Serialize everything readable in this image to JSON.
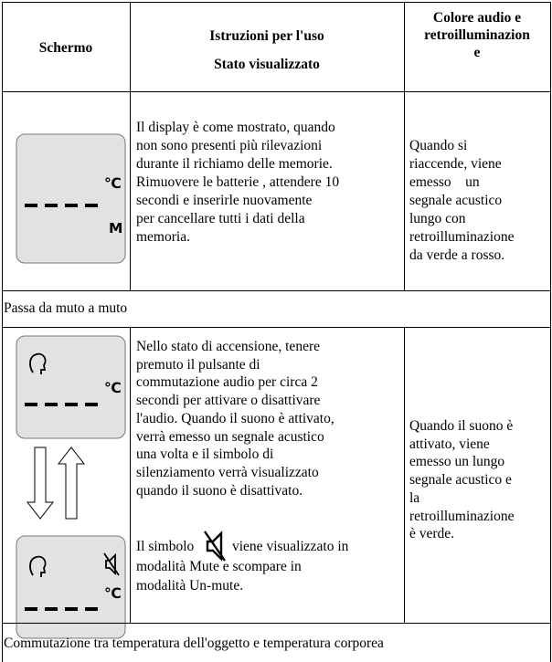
{
  "table": {
    "header": {
      "screen": "Schermo",
      "instructions": [
        "Istruzioni per l'uso",
        "Stato visualizzato"
      ],
      "sound": [
        "Colore audio e",
        "retroilluminazion",
        "e"
      ]
    },
    "rows": [
      {
        "screen": {
          "unit": "℃",
          "memory": "M"
        },
        "instructions": [
          "Il display è come mostrato, quando",
          "non sono presenti più rilevazioni",
          "durante il richiamo delle memorie.",
          "Rimuovere le batterie , attendere 10",
          "secondi e inserirle nuovamente",
          "per cancellare tutti i dati della",
          "memoria."
        ],
        "sound": [
          "Quando si",
          "riaccende, viene",
          "emesso    un",
          "segnale acustico",
          "lungo con",
          "retroilluminazione",
          "da verde a rosso."
        ]
      },
      {
        "section": "Passa da muto a muto"
      },
      {
        "screen": {
          "unit_on": "℃",
          "unit_off": "℃"
        },
        "instructions": [
          "Nello stato di accensione, tenere",
          "premuto il pulsante di",
          "commutazione audio per circa 2",
          "secondi per attivare o disattivare",
          "l'audio. Quando il suono è attivato,",
          "verrà emesso un segnale acustico",
          "una volta e il simbolo di",
          "silenziamento verrà visualizzato",
          "quando il suono è disattivato."
        ],
        "mute_note": {
          "before": "Il simbolo",
          "after": "viene visualizzato in",
          "lines": [
            "modalità Mute e scompare in",
            "modalità Un-mute."
          ]
        },
        "sound": [
          "Quando il suono è",
          "attivato, viene",
          "emesso un lungo",
          "segnale acustico e",
          "la",
          "retroilluminazione",
          "è verde."
        ]
      },
      {
        "section": "Commutazione tra temperatura dell'oggetto e temperatura corporea"
      }
    ]
  }
}
